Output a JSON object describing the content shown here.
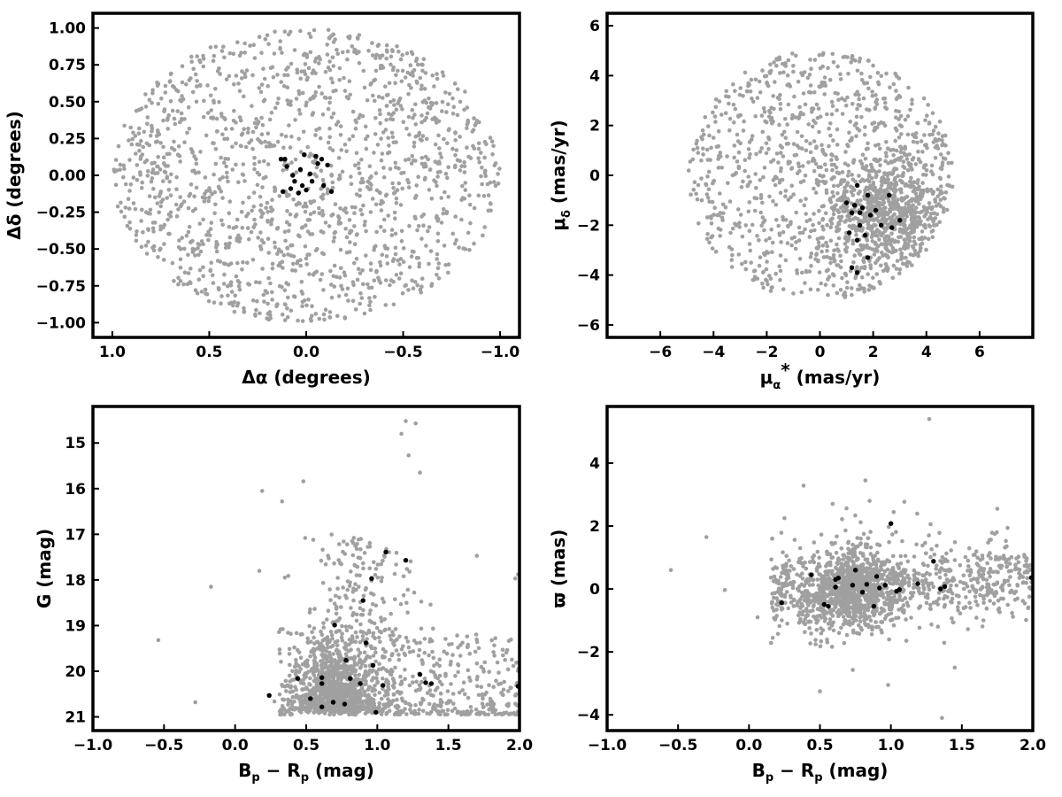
{
  "chart_data": [
    {
      "type": "scatter",
      "panel": "top-left",
      "xlabel": "Δα (degrees)",
      "ylabel": "Δδ (degrees)",
      "xlim": [
        1.1,
        -1.1
      ],
      "ylim": [
        -1.1,
        1.1
      ],
      "x_inverted": true,
      "xticks": [
        1.0,
        0.5,
        0.0,
        -0.5,
        -1.0
      ],
      "xtick_labels": [
        "1.0",
        "0.5",
        "0.0",
        "−0.5",
        "−1.0"
      ],
      "yticks": [
        1.0,
        0.75,
        0.5,
        0.25,
        0.0,
        -0.25,
        -0.5,
        -0.75,
        -1.0
      ],
      "ytick_labels": [
        "1.00",
        "0.75",
        "0.50",
        "0.25",
        "0.00",
        "−0.25",
        "−0.50",
        "−0.75",
        "−1.00"
      ],
      "grid": false,
      "series": [
        {
          "color": "#a0a0a0",
          "description_of_distribution": "uniform disk of radius 1 degree",
          "points": [
            [
              0.82,
              0.35
            ],
            [
              0.61,
              -0.54
            ],
            [
              -0.36,
              0.71
            ],
            [
              -0.77,
              -0.28
            ],
            [
              0.29,
              0.88
            ],
            [
              -0.55,
              0.39
            ],
            [
              0.11,
              -0.78
            ],
            [
              0.93,
              -0.06
            ],
            [
              -0.92,
              0.12
            ],
            [
              0.44,
              0.12
            ],
            [
              -0.21,
              -0.42
            ],
            [
              0.67,
              0.58
            ],
            [
              -0.68,
              -0.63
            ],
            [
              0.05,
              0.52
            ],
            [
              -0.12,
              0.93
            ],
            [
              0.37,
              -0.86
            ],
            [
              -0.41,
              -0.88
            ],
            [
              0.75,
              -0.21
            ],
            [
              -0.83,
              0.46
            ],
            [
              0.18,
              -0.31
            ],
            [
              -0.31,
              0.18
            ],
            [
              0.55,
              0.78
            ],
            [
              -0.6,
              0.75
            ],
            [
              0.9,
              0.21
            ],
            [
              -0.95,
              -0.19
            ],
            [
              0.23,
              0.39
            ],
            [
              -0.47,
              -0.1
            ],
            [
              0.66,
              -0.74
            ],
            [
              -0.2,
              -0.97
            ],
            [
              0.03,
              0.98
            ]
          ]
        },
        {
          "color": "#000000",
          "points": [
            [
              0.13,
              0.11
            ],
            [
              0.1,
              0.06
            ],
            [
              0.03,
              0.04
            ],
            [
              -0.02,
              0.01
            ],
            [
              0.06,
              -0.04
            ],
            [
              0.12,
              -0.11
            ],
            [
              -0.05,
              0.13
            ],
            [
              -0.08,
              0.11
            ],
            [
              -0.11,
              0.07
            ],
            [
              0.02,
              -0.07
            ],
            [
              0.04,
              -0.12
            ],
            [
              -0.09,
              -0.07
            ],
            [
              -0.13,
              -0.11
            ],
            [
              0.01,
              0.14
            ],
            [
              0.07,
              0.0
            ],
            [
              -0.03,
              -0.04
            ],
            [
              0.08,
              -0.09
            ],
            [
              -0.06,
              0.08
            ],
            [
              0.11,
              0.11
            ],
            [
              0.0,
              -0.1
            ]
          ]
        }
      ]
    },
    {
      "type": "scatter",
      "panel": "top-right",
      "xlabel": "μα* (mas/yr)",
      "ylabel": "μδ (mas/yr)",
      "xlim": [
        -8,
        8
      ],
      "ylim": [
        -6.5,
        6.5
      ],
      "xticks": [
        -6,
        -4,
        -2,
        0,
        2,
        4,
        6
      ],
      "xtick_labels": [
        "−6",
        "−4",
        "−2",
        "0",
        "2",
        "4",
        "6"
      ],
      "yticks": [
        -6,
        -4,
        -2,
        0,
        2,
        4,
        6
      ],
      "ytick_labels": [
        "−6",
        "−4",
        "−2",
        "0",
        "2",
        "4",
        "6"
      ],
      "grid": false,
      "series": [
        {
          "color": "#a0a0a0",
          "description_of_distribution": "disk of radius 5 mas/yr centred near (0,0) with concentration near (2.5,-1.5)",
          "points": [
            [
              2.5,
              -1.5
            ],
            [
              3.8,
              -0.6
            ],
            [
              1.2,
              1.5
            ],
            [
              -2.1,
              -2.2
            ],
            [
              0.3,
              -4.8
            ],
            [
              4.6,
              0.4
            ],
            [
              -3.4,
              1.8
            ],
            [
              2.9,
              3.1
            ],
            [
              -0.7,
              4.1
            ],
            [
              1.9,
              -3.6
            ],
            [
              -4.2,
              -0.9
            ],
            [
              3.3,
              -2.9
            ],
            [
              0.0,
              0.0
            ],
            [
              2.0,
              4.4
            ],
            [
              -1.5,
              -4.2
            ]
          ]
        },
        {
          "color": "#000000",
          "points": [
            [
              1.4,
              -0.4
            ],
            [
              1.8,
              -0.8
            ],
            [
              1.0,
              -1.1
            ],
            [
              1.3,
              -1.2
            ],
            [
              1.6,
              -1.3
            ],
            [
              2.1,
              -1.4
            ],
            [
              2.6,
              -0.8
            ],
            [
              1.2,
              -1.5
            ],
            [
              1.9,
              -1.6
            ],
            [
              2.3,
              -2.0
            ],
            [
              3.0,
              -1.8
            ],
            [
              1.5,
              -2.0
            ],
            [
              1.1,
              -2.3
            ],
            [
              2.7,
              -2.1
            ],
            [
              1.7,
              -2.4
            ],
            [
              1.4,
              -2.6
            ],
            [
              1.8,
              -3.3
            ],
            [
              1.2,
              -3.7
            ],
            [
              1.4,
              -3.9
            ],
            [
              1.5,
              -1.5
            ]
          ]
        }
      ]
    },
    {
      "type": "scatter",
      "panel": "bottom-left",
      "xlabel": "Bp − Rp (mag)",
      "ylabel": "G (mag)",
      "xlim": [
        -1.0,
        2.0
      ],
      "ylim": [
        21.3,
        14.2
      ],
      "y_inverted": true,
      "xticks": [
        -1.0,
        -0.5,
        0.0,
        0.5,
        1.0,
        1.5,
        2.0
      ],
      "xtick_labels": [
        "−1.0",
        "−0.5",
        "0.0",
        "0.5",
        "1.0",
        "1.5",
        "2.0"
      ],
      "yticks": [
        21,
        20,
        19,
        18,
        17,
        16,
        15
      ],
      "ytick_labels": [
        "21",
        "20",
        "19",
        "18",
        "17",
        "16",
        "15"
      ],
      "grid": false,
      "series": [
        {
          "color": "#a0a0a0",
          "description_of_distribution": "dense clump near Bp-Rp 0.5-1.0, G 19.5-21, with faint tail at Bp-Rp 1.0-2.0",
          "points": [
            [
              -0.54,
              19.32
            ],
            [
              -0.28,
              20.68
            ],
            [
              -0.17,
              18.15
            ],
            [
              0.17,
              17.8
            ],
            [
              0.19,
              16.05
            ],
            [
              0.33,
              16.28
            ],
            [
              0.35,
              17.95
            ],
            [
              0.48,
              15.84
            ],
            [
              0.55,
              17.12
            ],
            [
              1.17,
              14.8
            ],
            [
              1.2,
              14.52
            ],
            [
              1.27,
              14.57
            ],
            [
              1.22,
              15.27
            ],
            [
              1.3,
              15.65
            ],
            [
              1.7,
              17.47
            ],
            [
              1.97,
              17.97
            ],
            [
              1.99,
              17.88
            ]
          ]
        },
        {
          "color": "#000000",
          "points": [
            [
              0.24,
              20.53
            ],
            [
              0.44,
              20.16
            ],
            [
              0.53,
              20.6
            ],
            [
              0.61,
              20.78
            ],
            [
              0.61,
              20.27
            ],
            [
              0.61,
              20.14
            ],
            [
              0.69,
              20.68
            ],
            [
              0.77,
              20.72
            ],
            [
              0.81,
              20.16
            ],
            [
              0.99,
              20.9
            ],
            [
              1.04,
              20.31
            ],
            [
              0.88,
              20.27
            ],
            [
              0.78,
              19.76
            ],
            [
              0.97,
              19.87
            ],
            [
              0.7,
              18.99
            ],
            [
              0.92,
              19.38
            ],
            [
              0.9,
              18.45
            ],
            [
              0.96,
              17.97
            ],
            [
              1.06,
              17.39
            ],
            [
              1.2,
              17.57
            ],
            [
              1.3,
              20.07
            ],
            [
              1.34,
              20.25
            ],
            [
              1.38,
              20.27
            ],
            [
              1.99,
              20.33
            ]
          ]
        }
      ]
    },
    {
      "type": "scatter",
      "panel": "bottom-right",
      "xlabel": "Bp − Rp (mag)",
      "ylabel": "ϖ (mas)",
      "xlim": [
        -1.0,
        2.0
      ],
      "ylim": [
        -4.5,
        5.8
      ],
      "xticks": [
        -1.0,
        -0.5,
        0.0,
        0.5,
        1.0,
        1.5,
        2.0
      ],
      "xtick_labels": [
        "−1.0",
        "−0.5",
        "0.0",
        "0.5",
        "1.0",
        "1.5",
        "2.0"
      ],
      "yticks": [
        4,
        2,
        0,
        -2,
        -4
      ],
      "ytick_labels": [
        "4",
        "2",
        "0",
        "−2",
        "−4"
      ],
      "grid": false,
      "series": [
        {
          "color": "#a0a0a0",
          "description_of_distribution": "band near parallax 0 from Bp-Rp 0.1 to 2.0 with scatter of about 1 mas",
          "points": [
            [
              -0.55,
              0.6
            ],
            [
              -0.3,
              1.65
            ],
            [
              -0.17,
              -0.03
            ],
            [
              0.06,
              -0.9
            ],
            [
              0.25,
              2.25
            ],
            [
              0.5,
              -3.25
            ],
            [
              0.98,
              -3.05
            ],
            [
              1.27,
              5.4
            ],
            [
              1.36,
              -4.1
            ],
            [
              0.82,
              3.45
            ],
            [
              0.85,
              2.8
            ],
            [
              1.45,
              -2.5
            ],
            [
              1.75,
              2.55
            ]
          ]
        },
        {
          "color": "#000000",
          "points": [
            [
              0.23,
              -0.44
            ],
            [
              0.44,
              0.45
            ],
            [
              0.53,
              -0.49
            ],
            [
              0.56,
              -0.55
            ],
            [
              0.61,
              0.06
            ],
            [
              0.61,
              0.3
            ],
            [
              0.63,
              0.35
            ],
            [
              0.73,
              0.12
            ],
            [
              0.75,
              0.6
            ],
            [
              0.8,
              -0.1
            ],
            [
              0.83,
              0.15
            ],
            [
              0.88,
              -0.55
            ],
            [
              0.9,
              0.4
            ],
            [
              0.92,
              0.03
            ],
            [
              0.96,
              0.12
            ],
            [
              1.0,
              2.08
            ],
            [
              1.04,
              -0.07
            ],
            [
              1.06,
              -0.02
            ],
            [
              1.19,
              0.17
            ],
            [
              1.3,
              0.88
            ],
            [
              1.35,
              0.0
            ],
            [
              1.38,
              0.08
            ],
            [
              1.99,
              0.36
            ]
          ]
        }
      ]
    }
  ],
  "colors": {
    "field_stars": "#a0a0a0",
    "members": "#000000"
  }
}
